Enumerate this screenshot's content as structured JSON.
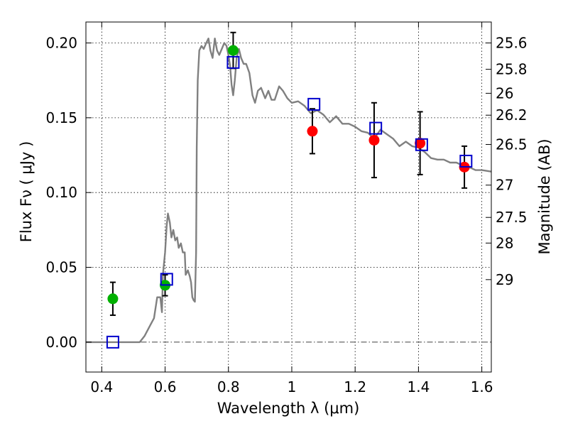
{
  "chart_data": {
    "type": "scatter",
    "xlabel": "Wavelength  λ (μm)",
    "ylabel": "Flux  Fν ( μJy )",
    "y2label": "Magnitude (AB)",
    "xlim": [
      0.35,
      1.63
    ],
    "ylim": [
      -0.02,
      0.214
    ],
    "grid": true,
    "x_ticks": [
      {
        "value": 0.4,
        "label": "0.4"
      },
      {
        "value": 0.6,
        "label": "0.6"
      },
      {
        "value": 0.8,
        "label": "0.8"
      },
      {
        "value": 1.0,
        "label": "1"
      },
      {
        "value": 1.2,
        "label": "1.2"
      },
      {
        "value": 1.4,
        "label": "1.4"
      },
      {
        "value": 1.6,
        "label": "1.6"
      }
    ],
    "y_ticks": [
      {
        "value": 0.0,
        "label": "0.00"
      },
      {
        "value": 0.05,
        "label": "0.05"
      },
      {
        "value": 0.1,
        "label": "0.10"
      },
      {
        "value": 0.15,
        "label": "0.15"
      },
      {
        "value": 0.2,
        "label": "0.20"
      }
    ],
    "y2_ticks": [
      {
        "value": 25.6,
        "label": "25.6"
      },
      {
        "value": 25.8,
        "label": "25.8"
      },
      {
        "value": 26.0,
        "label": "26"
      },
      {
        "value": 26.2,
        "label": "26.2"
      },
      {
        "value": 26.5,
        "label": "26.5"
      },
      {
        "value": 27.0,
        "label": "27"
      },
      {
        "value": 27.5,
        "label": "27.5"
      },
      {
        "value": 28.0,
        "label": "28"
      },
      {
        "value": 29.0,
        "label": "29"
      }
    ],
    "series": [
      {
        "kind": "line",
        "color": "#808080",
        "points": [
          [
            0.35,
            0.0
          ],
          [
            0.52,
            0.0
          ],
          [
            0.535,
            0.004
          ],
          [
            0.555,
            0.012
          ],
          [
            0.565,
            0.016
          ],
          [
            0.575,
            0.03
          ],
          [
            0.582,
            0.03
          ],
          [
            0.585,
            0.03
          ],
          [
            0.59,
            0.02
          ],
          [
            0.593,
            0.045
          ],
          [
            0.6,
            0.06
          ],
          [
            0.605,
            0.078
          ],
          [
            0.609,
            0.086
          ],
          [
            0.615,
            0.08
          ],
          [
            0.62,
            0.07
          ],
          [
            0.626,
            0.075
          ],
          [
            0.632,
            0.068
          ],
          [
            0.638,
            0.07
          ],
          [
            0.643,
            0.063
          ],
          [
            0.65,
            0.066
          ],
          [
            0.656,
            0.06
          ],
          [
            0.662,
            0.06
          ],
          [
            0.665,
            0.045
          ],
          [
            0.672,
            0.048
          ],
          [
            0.678,
            0.044
          ],
          [
            0.682,
            0.04
          ],
          [
            0.686,
            0.03
          ],
          [
            0.69,
            0.028
          ],
          [
            0.694,
            0.027
          ],
          [
            0.698,
            0.06
          ],
          [
            0.7,
            0.13
          ],
          [
            0.703,
            0.175
          ],
          [
            0.708,
            0.195
          ],
          [
            0.715,
            0.198
          ],
          [
            0.722,
            0.196
          ],
          [
            0.73,
            0.2
          ],
          [
            0.737,
            0.203
          ],
          [
            0.743,
            0.195
          ],
          [
            0.75,
            0.19
          ],
          [
            0.757,
            0.203
          ],
          [
            0.764,
            0.195
          ],
          [
            0.771,
            0.192
          ],
          [
            0.779,
            0.196
          ],
          [
            0.787,
            0.2
          ],
          [
            0.794,
            0.198
          ],
          [
            0.8,
            0.192
          ],
          [
            0.805,
            0.185
          ],
          [
            0.81,
            0.172
          ],
          [
            0.815,
            0.165
          ],
          [
            0.82,
            0.175
          ],
          [
            0.826,
            0.19
          ],
          [
            0.833,
            0.196
          ],
          [
            0.84,
            0.19
          ],
          [
            0.848,
            0.186
          ],
          [
            0.856,
            0.186
          ],
          [
            0.866,
            0.18
          ],
          [
            0.876,
            0.165
          ],
          [
            0.884,
            0.16
          ],
          [
            0.893,
            0.168
          ],
          [
            0.903,
            0.17
          ],
          [
            0.916,
            0.163
          ],
          [
            0.926,
            0.168
          ],
          [
            0.936,
            0.162
          ],
          [
            0.946,
            0.162
          ],
          [
            0.96,
            0.171
          ],
          [
            0.972,
            0.168
          ],
          [
            0.986,
            0.163
          ],
          [
            1.0,
            0.16
          ],
          [
            1.02,
            0.161
          ],
          [
            1.04,
            0.158
          ],
          [
            1.06,
            0.153
          ],
          [
            1.08,
            0.155
          ],
          [
            1.1,
            0.152
          ],
          [
            1.12,
            0.147
          ],
          [
            1.14,
            0.151
          ],
          [
            1.16,
            0.146
          ],
          [
            1.18,
            0.146
          ],
          [
            1.2,
            0.144
          ],
          [
            1.22,
            0.141
          ],
          [
            1.24,
            0.14
          ],
          [
            1.26,
            0.136
          ],
          [
            1.28,
            0.142
          ],
          [
            1.3,
            0.139
          ],
          [
            1.32,
            0.136
          ],
          [
            1.34,
            0.131
          ],
          [
            1.36,
            0.134
          ],
          [
            1.38,
            0.131
          ],
          [
            1.4,
            0.13
          ],
          [
            1.42,
            0.127
          ],
          [
            1.44,
            0.123
          ],
          [
            1.46,
            0.122
          ],
          [
            1.48,
            0.122
          ],
          [
            1.5,
            0.12
          ],
          [
            1.52,
            0.12
          ],
          [
            1.54,
            0.118
          ],
          [
            1.56,
            0.117
          ],
          [
            1.58,
            0.115
          ],
          [
            1.6,
            0.115
          ],
          [
            1.63,
            0.114
          ]
        ]
      },
      {
        "kind": "markers",
        "marker": "circle",
        "color": "#00b000",
        "x": [
          0.435,
          0.6,
          0.815
        ],
        "y": [
          0.029,
          0.038,
          0.195
        ],
        "err": [
          0.011,
          0.007,
          0.012
        ]
      },
      {
        "kind": "markers",
        "marker": "circle",
        "color": "#ff0000",
        "x": [
          1.065,
          1.26,
          1.405,
          1.545
        ],
        "y": [
          0.141,
          0.135,
          0.133,
          0.117
        ],
        "err": [
          0.015,
          0.025,
          0.021,
          0.014
        ]
      },
      {
        "kind": "markers",
        "marker": "open-square",
        "color": "#0000cc",
        "x": [
          0.435,
          0.605,
          0.815,
          1.07,
          1.265,
          1.41,
          1.55
        ],
        "y": [
          0.0,
          0.042,
          0.187,
          0.159,
          0.143,
          0.132,
          0.121
        ]
      }
    ]
  }
}
